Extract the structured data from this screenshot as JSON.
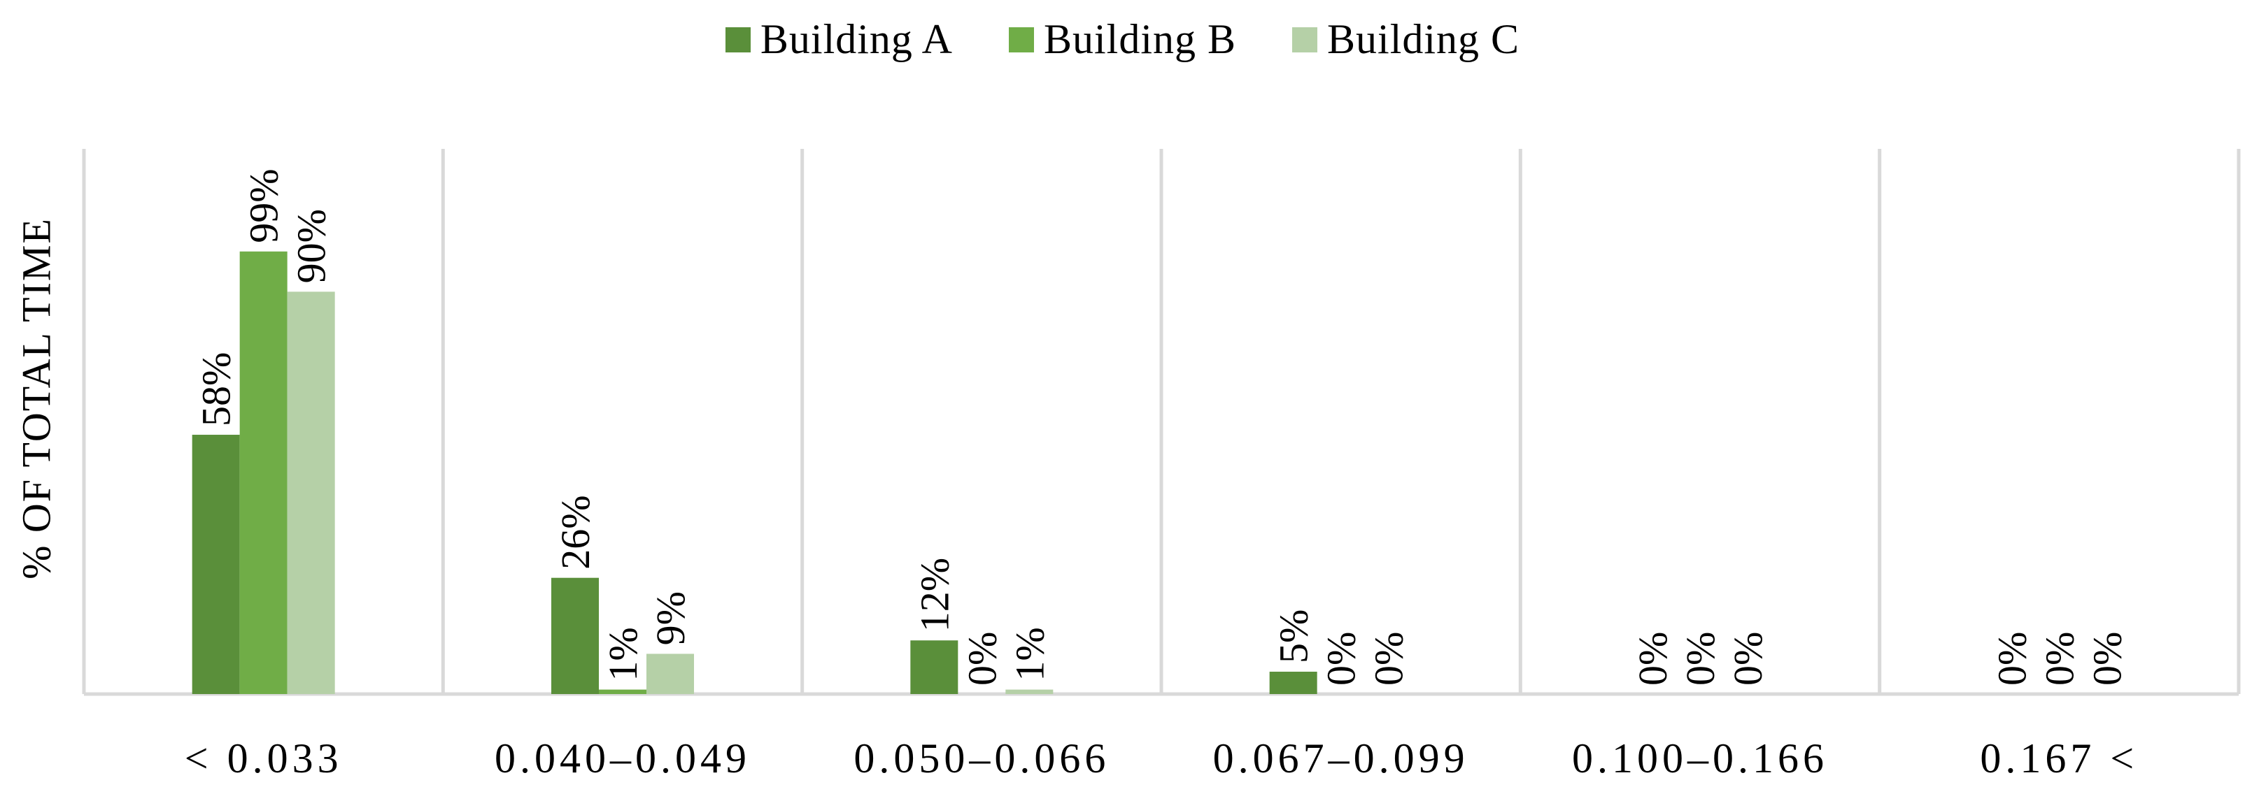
{
  "chart_data": {
    "type": "bar",
    "ylabel": "% OF TOTAL  TIME",
    "xlabel": "",
    "ylim": [
      0,
      100
    ],
    "grid": false,
    "legend_position": "top-center",
    "categories": [
      "< 0.033",
      "0.040–0.049",
      "0.050–0.066",
      "0.067–0.099",
      "0.100–0.166",
      "0.167 <"
    ],
    "series": [
      {
        "name": "Building A",
        "color": "#5a8f3a",
        "values": [
          58,
          26,
          12,
          5,
          0,
          0
        ],
        "labels": [
          "58%",
          "26%",
          "12%",
          "5%",
          "0%",
          "0%"
        ]
      },
      {
        "name": "Building B",
        "color": "#70ad47",
        "values": [
          99,
          1,
          0,
          0,
          0,
          0
        ],
        "labels": [
          "99%",
          "1%",
          "0%",
          "0%",
          "0%",
          "0%"
        ]
      },
      {
        "name": "Building C",
        "color": "#b5d0a7",
        "values": [
          90,
          9,
          1,
          0,
          0,
          0
        ],
        "labels": [
          "90%",
          "9%",
          "1%",
          "0%",
          "0%",
          "0%"
        ]
      }
    ]
  }
}
